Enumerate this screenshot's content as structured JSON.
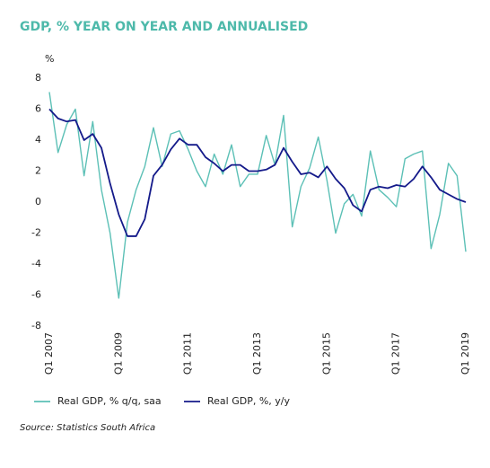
{
  "chart_data": {
    "type": "line",
    "title": "GDP, % YEAR ON YEAR AND ANNUALISED",
    "y_label": "%",
    "source": "Source: Statistics South Africa",
    "categories": [
      "Q1 2007",
      null,
      null,
      null,
      null,
      null,
      null,
      null,
      "Q1 2009",
      null,
      null,
      null,
      null,
      null,
      null,
      null,
      "Q1 2011",
      null,
      null,
      null,
      null,
      null,
      null,
      null,
      "Q1 2013",
      null,
      null,
      null,
      null,
      null,
      null,
      null,
      "Q1 2015",
      null,
      null,
      null,
      null,
      null,
      null,
      null,
      "Q1 2017",
      null,
      null,
      null,
      null,
      null,
      null,
      null,
      "Q1 2019"
    ],
    "series": [
      {
        "name": "Real GDP, % q/q, saa",
        "color": "#5cc0b6",
        "values": [
          7.1,
          3.2,
          5.0,
          6.0,
          1.7,
          5.2,
          0.8,
          -2.0,
          -6.2,
          -1.3,
          0.8,
          2.3,
          4.8,
          2.3,
          4.4,
          4.6,
          3.4,
          2.0,
          1.0,
          3.1,
          1.8,
          3.7,
          1.0,
          1.8,
          1.8,
          4.3,
          2.4,
          5.6,
          -1.6,
          1.0,
          2.2,
          4.2,
          1.4,
          -2.0,
          -0.1,
          0.5,
          -0.9,
          3.3,
          0.8,
          0.3,
          -0.3,
          2.8,
          3.1,
          3.3,
          -3.0,
          -0.8,
          2.5,
          1.7,
          -3.2
        ]
      },
      {
        "name": "Real GDP, %, y/y",
        "color": "#141a8a",
        "values": [
          6.0,
          5.4,
          5.2,
          5.3,
          4.0,
          4.4,
          3.5,
          1.2,
          -0.8,
          -2.2,
          -2.2,
          -1.1,
          1.7,
          2.4,
          3.4,
          4.1,
          3.7,
          3.7,
          2.9,
          2.5,
          2.0,
          2.4,
          2.4,
          2.0,
          2.0,
          2.1,
          2.4,
          3.5,
          2.6,
          1.8,
          1.9,
          1.6,
          2.3,
          1.5,
          0.9,
          -0.2,
          -0.6,
          0.8,
          1.0,
          0.9,
          1.1,
          1.0,
          1.5,
          2.3,
          1.6,
          0.8,
          0.5,
          0.2,
          0.0
        ]
      }
    ],
    "ylim": [
      -8,
      8
    ],
    "yticks": [
      -8,
      -6,
      -4,
      -2,
      0,
      2,
      4,
      6,
      8
    ],
    "grid": false
  }
}
